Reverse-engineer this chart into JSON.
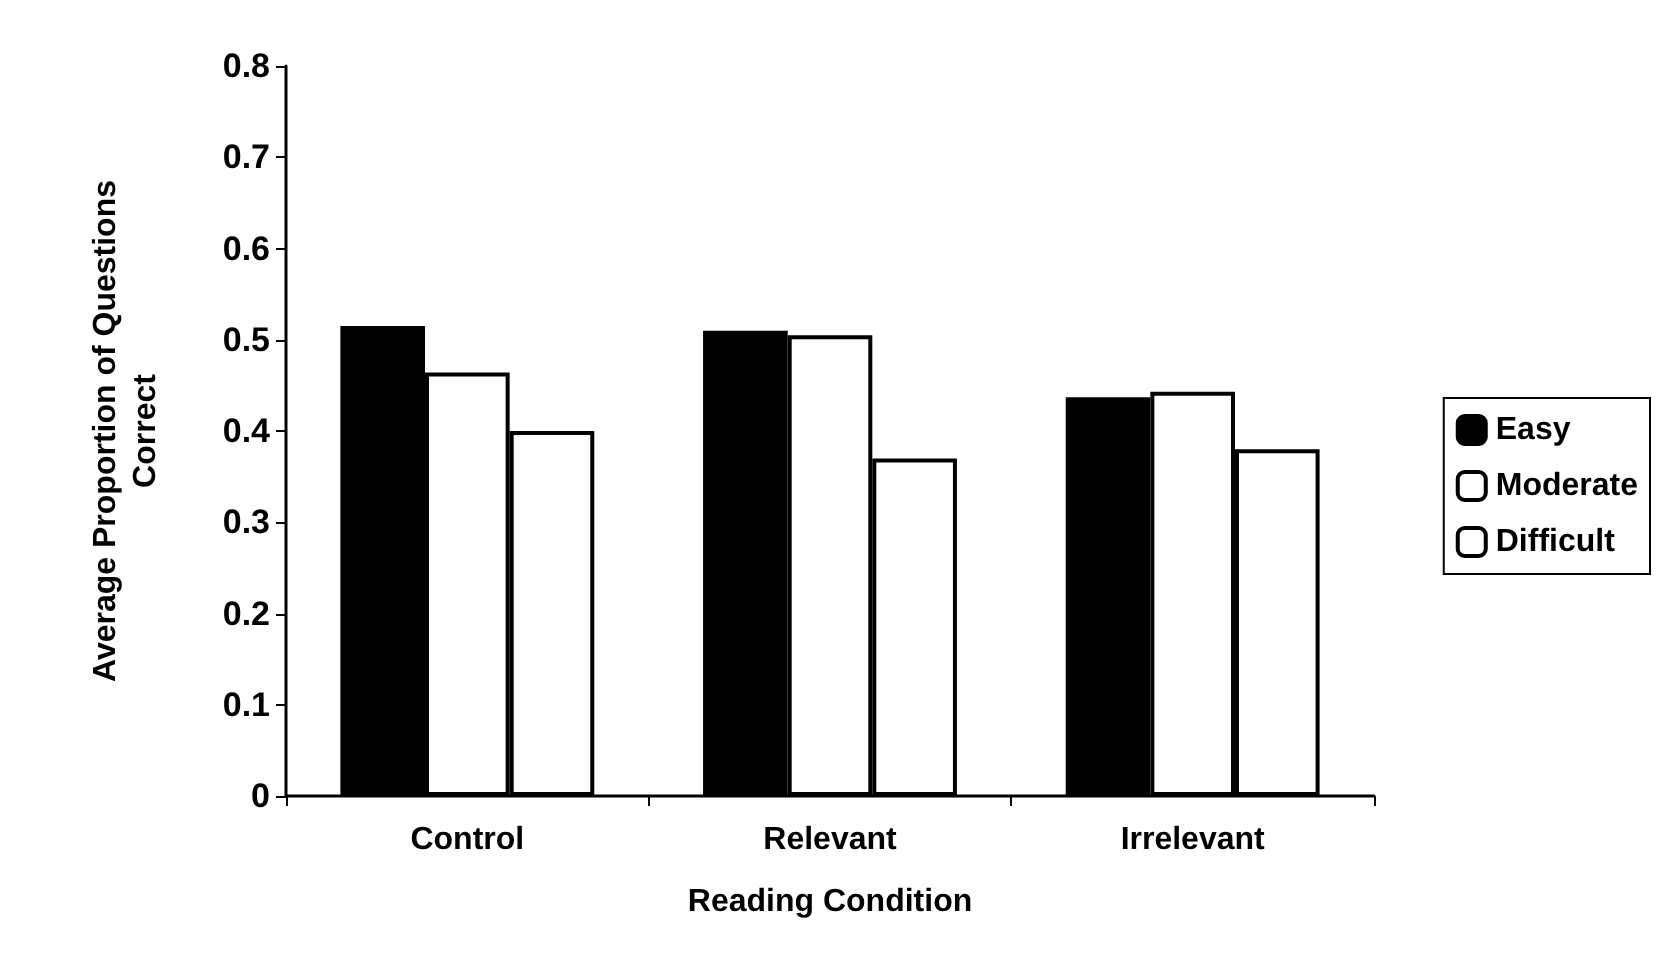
{
  "chart_data": {
    "type": "bar",
    "xlabel": "Reading Condition",
    "ylabel": "Average Proportion of Questions\nCorrect",
    "categories": [
      "Control",
      "Relevant",
      "Irrelevant"
    ],
    "series": [
      {
        "name": "Easy",
        "color": "#000000",
        "values": [
          0.515,
          0.51,
          0.437
        ]
      },
      {
        "name": "Moderate",
        "color": "#ffffff",
        "values": [
          0.464,
          0.505,
          0.443
        ]
      },
      {
        "name": "Difficult",
        "color": "#ffffff",
        "values": [
          0.4,
          0.37,
          0.38
        ]
      }
    ],
    "ylim": [
      0,
      0.8
    ],
    "yticks": [
      0,
      0.1,
      0.2,
      0.3,
      0.4,
      0.5,
      0.6,
      0.7,
      0.8
    ],
    "grid": false,
    "legend": "right"
  }
}
